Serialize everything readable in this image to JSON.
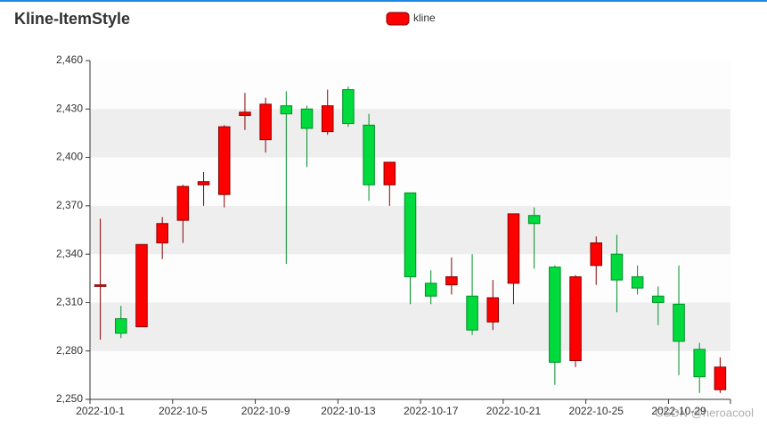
{
  "chart_data": {
    "type": "candlestick",
    "title": "Kline-ItemStyle",
    "categories": [
      "2022-10-1",
      null,
      null,
      null,
      "2022-10-5",
      null,
      null,
      null,
      "2022-10-9",
      null,
      null,
      null,
      "2022-10-13",
      null,
      null,
      null,
      "2022-10-17",
      null,
      null,
      null,
      "2022-10-21",
      null,
      null,
      null,
      "2022-10-25",
      null,
      null,
      null,
      "2022-10-29",
      null,
      null
    ],
    "series": [
      {
        "name": "kline",
        "up_color": "#ff0000",
        "up_border": "#8a0000",
        "down_color": "#00da3c",
        "down_border": "#008f28",
        "values": [
          [
            2320,
            2321,
            2287,
            2362
          ],
          [
            2300,
            2291,
            2288,
            2308
          ],
          [
            2295,
            2346,
            2295,
            2346
          ],
          [
            2347,
            2359,
            2337,
            2363
          ],
          [
            2361,
            2382,
            2347,
            2383
          ],
          [
            2383,
            2385,
            2370,
            2391
          ],
          [
            2377,
            2419,
            2369,
            2420
          ],
          [
            2426,
            2428,
            2417,
            2440
          ],
          [
            2411,
            2433,
            2403,
            2437
          ],
          [
            2432,
            2427,
            2334,
            2441
          ],
          [
            2430,
            2418,
            2394,
            2432
          ],
          [
            2416,
            2432,
            2414,
            2442
          ],
          [
            2442,
            2421,
            2419,
            2444
          ],
          [
            2420,
            2383,
            2373,
            2427
          ],
          [
            2383,
            2397,
            2370,
            2397
          ],
          [
            2378,
            2326,
            2309,
            2378
          ],
          [
            2322,
            2314,
            2309,
            2330
          ],
          [
            2321,
            2326,
            2315,
            2338
          ],
          [
            2314,
            2293,
            2290,
            2340
          ],
          [
            2298,
            2313,
            2293,
            2324
          ],
          [
            2322,
            2365,
            2309,
            2365
          ],
          [
            2364,
            2359,
            2331,
            2369
          ],
          [
            2332,
            2273,
            2259,
            2333
          ],
          [
            2274,
            2326,
            2270,
            2327
          ],
          [
            2333,
            2347,
            2321,
            2351
          ],
          [
            2340,
            2324,
            2304,
            2352
          ],
          [
            2326,
            2319,
            2315,
            2333
          ],
          [
            2314,
            2310,
            2296,
            2320
          ],
          [
            2309,
            2286,
            2265,
            2333
          ],
          [
            2281,
            2264,
            2254,
            2285
          ],
          [
            2256,
            2270,
            2254,
            2276
          ]
        ]
      }
    ],
    "ylim": [
      2250,
      2460
    ],
    "yticks": [
      {
        "value": 2250,
        "label": "2,250"
      },
      {
        "value": 2280,
        "label": "2,280"
      },
      {
        "value": 2310,
        "label": "2,310"
      },
      {
        "value": 2340,
        "label": "2,340"
      },
      {
        "value": 2370,
        "label": "2,370"
      },
      {
        "value": 2400,
        "label": "2,400"
      },
      {
        "value": 2430,
        "label": "2,430"
      },
      {
        "value": 2460,
        "label": "2,460"
      }
    ],
    "split_area": true,
    "watermark": "CSDN @heroacool"
  }
}
